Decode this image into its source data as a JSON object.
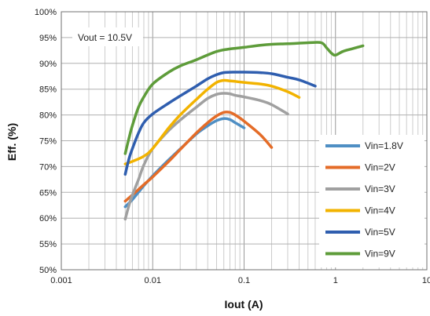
{
  "chart_data": {
    "type": "line",
    "xscale": "log",
    "xlim": [
      0.001,
      10
    ],
    "ylim": [
      50,
      100
    ],
    "xticks": [
      "0.001",
      "0.01",
      "0.1",
      "1",
      "10"
    ],
    "yticks": [
      "50%",
      "55%",
      "60%",
      "65%",
      "70%",
      "75%",
      "80%",
      "85%",
      "90%",
      "95%",
      "100%"
    ],
    "xlabel": "Iout (A)",
    "ylabel": "Eff. (%)",
    "annotation": "Vout = 10.5V",
    "grid": true,
    "legend_position": "bottom-right",
    "series": [
      {
        "name": "Vin=1.8V",
        "color": "#4F8FC4",
        "x": [
          0.005,
          0.006,
          0.008,
          0.01,
          0.015,
          0.02,
          0.03,
          0.04,
          0.05,
          0.06,
          0.07,
          0.08,
          0.1
        ],
        "y": [
          62.2,
          63.6,
          66.3,
          68.2,
          71.3,
          73.4,
          76.3,
          77.9,
          78.9,
          79.3,
          79.1,
          78.5,
          77.5
        ]
      },
      {
        "name": "Vin=2V",
        "color": "#E46C28",
        "x": [
          0.005,
          0.006,
          0.008,
          0.01,
          0.015,
          0.02,
          0.03,
          0.04,
          0.05,
          0.06,
          0.07,
          0.08,
          0.1,
          0.15,
          0.2
        ],
        "y": [
          63.3,
          64.5,
          66.5,
          68.0,
          71.0,
          73.3,
          76.5,
          78.5,
          79.8,
          80.5,
          80.5,
          80.0,
          78.8,
          76.2,
          73.7
        ]
      },
      {
        "name": "Vin=3V",
        "color": "#A0A0A0",
        "x": [
          0.005,
          0.0055,
          0.006,
          0.007,
          0.008,
          0.01,
          0.015,
          0.02,
          0.03,
          0.04,
          0.05,
          0.06,
          0.07,
          0.08,
          0.1,
          0.15,
          0.2,
          0.3
        ],
        "y": [
          59.8,
          62.5,
          64.5,
          67.5,
          70.3,
          73.5,
          77.0,
          79.0,
          81.5,
          83.2,
          84.0,
          84.2,
          84.1,
          83.8,
          83.5,
          82.8,
          82.0,
          80.2
        ]
      },
      {
        "name": "Vin=4V",
        "color": "#F2B300",
        "x": [
          0.005,
          0.006,
          0.008,
          0.01,
          0.015,
          0.02,
          0.03,
          0.04,
          0.05,
          0.06,
          0.07,
          0.08,
          0.1,
          0.15,
          0.2,
          0.3,
          0.4
        ],
        "y": [
          70.5,
          71.0,
          72.0,
          73.5,
          77.5,
          80.0,
          83.0,
          85.0,
          86.3,
          86.7,
          86.6,
          86.5,
          86.3,
          86.0,
          85.6,
          84.5,
          83.4
        ]
      },
      {
        "name": "Vin=5V",
        "color": "#2F5EAF",
        "x": [
          0.005,
          0.0055,
          0.006,
          0.007,
          0.008,
          0.01,
          0.015,
          0.02,
          0.03,
          0.04,
          0.05,
          0.06,
          0.08,
          0.1,
          0.15,
          0.2,
          0.3,
          0.4,
          0.6
        ],
        "y": [
          68.5,
          71.5,
          73.5,
          76.5,
          78.5,
          80.2,
          82.3,
          83.7,
          85.6,
          87.0,
          87.8,
          88.2,
          88.3,
          88.3,
          88.2,
          88.0,
          87.3,
          86.8,
          85.6
        ]
      },
      {
        "name": "Vin=9V",
        "color": "#5E9C3A",
        "x": [
          0.005,
          0.0055,
          0.006,
          0.007,
          0.008,
          0.01,
          0.015,
          0.02,
          0.03,
          0.05,
          0.07,
          0.1,
          0.15,
          0.2,
          0.3,
          0.5,
          0.7,
          0.8,
          0.9,
          1.0,
          1.2,
          1.5,
          2.0
        ],
        "y": [
          72.5,
          75.5,
          78.0,
          81.5,
          83.5,
          86.0,
          88.3,
          89.5,
          90.7,
          92.3,
          92.8,
          93.1,
          93.5,
          93.7,
          93.8,
          94.0,
          94.0,
          93.0,
          92.0,
          91.6,
          92.3,
          92.8,
          93.4
        ]
      }
    ]
  }
}
